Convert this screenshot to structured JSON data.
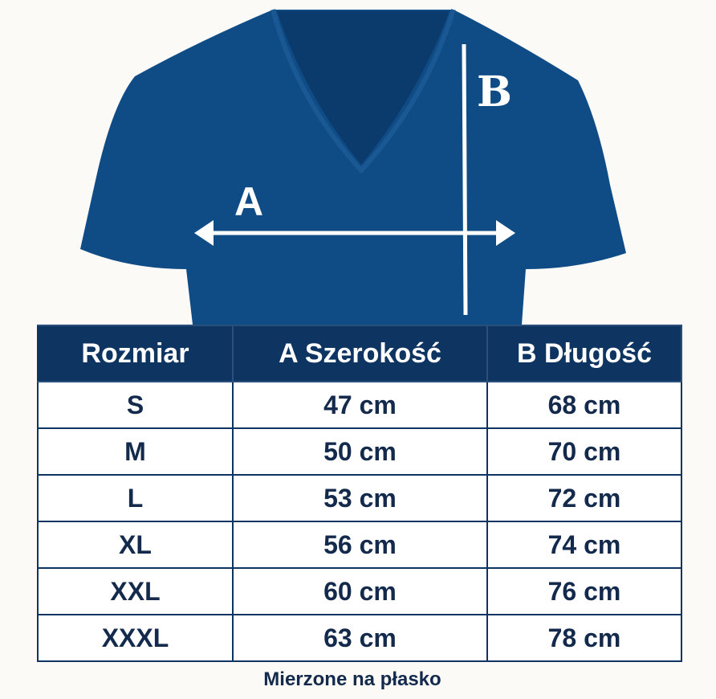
{
  "diagram": {
    "label_a": "A",
    "label_b": "B",
    "shirt_color": "#0f4c86",
    "header_color": "#0e3462"
  },
  "table": {
    "headers": [
      "Rozmiar",
      "A Szerokość",
      "B Długość"
    ],
    "rows": [
      [
        "S",
        "47 cm",
        "68 cm"
      ],
      [
        "M",
        "50 cm",
        "70 cm"
      ],
      [
        "L",
        "53 cm",
        "72 cm"
      ],
      [
        "XL",
        "56 cm",
        "74 cm"
      ],
      [
        "XXL",
        "60 cm",
        "76 cm"
      ],
      [
        "XXXL",
        "63 cm",
        "78 cm"
      ]
    ]
  },
  "caption": "Mierzone na płasko"
}
